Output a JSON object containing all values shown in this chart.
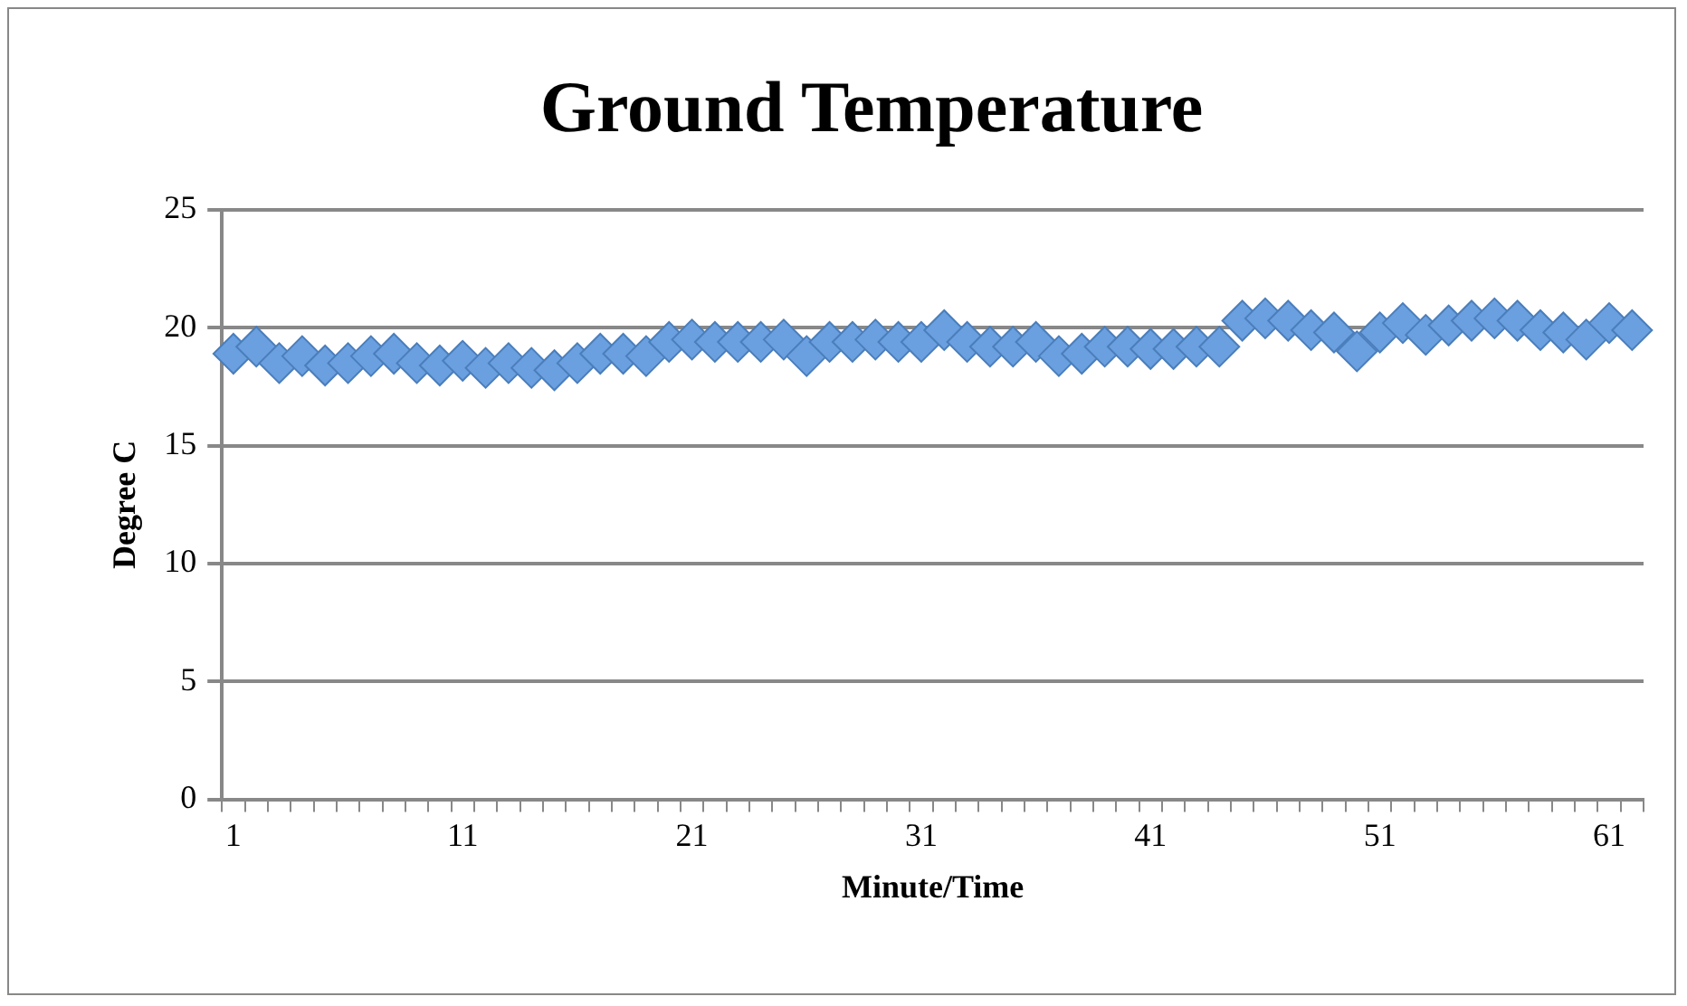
{
  "chart_data": {
    "type": "scatter",
    "title": "Ground Temperature",
    "xlabel": "Minute/Time",
    "ylabel": "Degree C",
    "categories": [
      "1",
      null,
      null,
      null,
      null,
      null,
      null,
      null,
      null,
      null,
      "11",
      null,
      null,
      null,
      null,
      null,
      null,
      null,
      null,
      null,
      "21",
      null,
      null,
      null,
      null,
      null,
      null,
      null,
      null,
      null,
      "31",
      null,
      null,
      null,
      null,
      null,
      null,
      null,
      null,
      null,
      "41",
      null,
      null,
      null,
      null,
      null,
      null,
      null,
      null,
      null,
      "51",
      null,
      null,
      null,
      null,
      null,
      null,
      null,
      null,
      null,
      "61",
      null
    ],
    "series": [
      {
        "color": "#6a9fe0",
        "values": [
          18.9,
          19.2,
          18.5,
          18.8,
          18.4,
          18.5,
          18.8,
          18.9,
          18.5,
          18.4,
          18.6,
          18.3,
          18.5,
          18.3,
          18.2,
          18.5,
          18.9,
          18.9,
          18.8,
          19.4,
          19.5,
          19.4,
          19.4,
          19.4,
          19.5,
          18.8,
          19.4,
          19.4,
          19.5,
          19.4,
          19.4,
          19.9,
          19.4,
          19.2,
          19.2,
          19.4,
          18.8,
          18.9,
          19.2,
          19.2,
          19.1,
          19.1,
          19.2,
          19.2,
          20.3,
          20.4,
          20.3,
          19.9,
          19.8,
          19.0,
          19.8,
          20.2,
          19.7,
          20.1,
          20.3,
          20.4,
          20.3,
          19.9,
          19.8,
          19.5,
          20.2,
          19.9
        ]
      }
    ],
    "ylim": [
      0,
      25
    ],
    "yticks": [
      0,
      5,
      10,
      15,
      20,
      25
    ],
    "grid": "y",
    "legend": false,
    "marker": "diamond"
  }
}
